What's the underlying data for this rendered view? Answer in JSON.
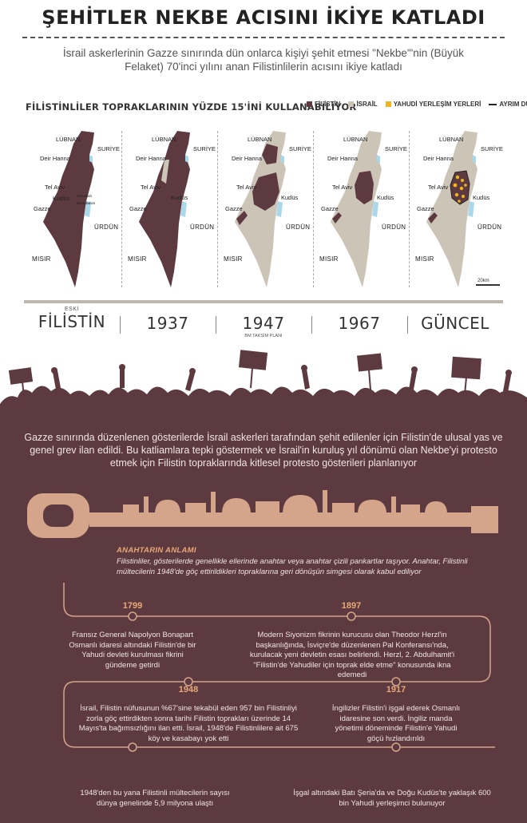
{
  "title": "ŞEHİTLER NEKBE ACISINI İKİYE KATLADI",
  "subtitle": "İsrail askerlerinin Gazze sınırında dün onlarca kişiyi şehit etmesi \"Nekbe\"'nin (Büyük Felaket) 70'inci yılını anan Filistinlilerin acısını ikiye katladı",
  "maps_section": {
    "heading": "FİLİSTİNLİLER TOPRAKLARININ YÜZDE 15'İNİ KULLANABİLİYOR",
    "legend": [
      {
        "label": "FİLİSTİN",
        "color": "#5d3a40"
      },
      {
        "label": "İSRAİL",
        "color": "#cdc4b8"
      },
      {
        "label": "YAHUDİ YERLEŞİM YERLERİ",
        "color": "#f0b41e"
      },
      {
        "label": "AYRIM DUVARI",
        "color": "#222222"
      }
    ],
    "place_labels": {
      "lebanon": "LÜBNAN",
      "syria": "SURİYE",
      "deir_hanna": "Deir Hanna",
      "tel_aviv": "Tel Aviv",
      "kudus": "Kudüs",
      "gaza": "Gazze",
      "jordan": "ÜRDÜN",
      "egypt": "MISIR",
      "ramallah": "Ramallah",
      "beytullahim": "Beytullahim"
    },
    "scale_label": "20km",
    "eras": [
      {
        "small": "ESKİ",
        "big": "FİLİSTİN",
        "sub": ""
      },
      {
        "small": "",
        "big": "1937",
        "sub": ""
      },
      {
        "small": "",
        "big": "1947",
        "sub": "BM TAKSİM PLANI"
      },
      {
        "small": "",
        "big": "1967",
        "sub": ""
      },
      {
        "small": "",
        "big": "GÜNCEL",
        "sub": ""
      }
    ]
  },
  "intro": "Gazze sınırında düzenlenen gösterilerde İsrail askerleri tarafından şehit edilenler için Filistin'de ulusal yas ve genel grev ilan edildi. Bu katliamlara tepki göstermek ve İsrail'in kuruluş yıl dönümü olan Nekbe'yi protesto etmek için Filistin topraklarında kitlesel protesto gösterileri planlanıyor",
  "key_meaning": {
    "heading": "ANAHTARIN ANLAMI",
    "text": "Filistinliler, gösterilerde genellikle ellerinde anahtar veya anahtar çizili pankartlar taşıyor. Anahtar, Filistinli mültecilerin 1948'de göç ettirildikleri topraklarına geri dönüşün simgesi olarak kabul ediliyor"
  },
  "timeline": [
    {
      "year": "1799",
      "text": "Fransız General Napolyon Bonapart Osmanlı idaresi altındaki Filistin'de bir Yahudi devleti kurulması fikrini gündeme getirdi"
    },
    {
      "year": "1897",
      "text": "Modern Siyonizm fikrinin kurucusu olan Theodor Herzl'in başkanlığında, İsviçre'de düzenlenen Pal Konferansı'nda, kurulacak yeni devletin esası belirlendi. Herzl, 2. Abdulhamit'i \"Filistin'de Yahudiler için toprak elde etme\" konusunda ikna edemedi"
    },
    {
      "year": "1948",
      "text": "İsrail, Filistin nüfusunun %67'sine tekabül eden 957 bin Filistinliyi zorla göç ettirdikten sonra tarihi Filistin toprakları üzerinde 14 Mayıs'ta bağımsızlığını ilan etti. İsrail, 1948'de Filistinlilere ait 675 köy ve kasabayı yok etti"
    },
    {
      "year": "1917",
      "text": "İngilizler Filistin'i işgal ederek Osmanlı idaresine son verdi. İngiliz manda yönetimi döneminde Filistin'e Yahudi göçü hızlandırıldı"
    },
    {
      "year": "",
      "text": "1948'den bu yana Filistinli mültecilerin sayısı dünya genelinde 5,9 milyona ulaştı"
    },
    {
      "year": "",
      "text": "İşgal altındaki Batı Şeria'da ve Doğu Kudüs'te yaklaşık 600 bin Yahudi yerleşimci bulunuyor"
    }
  ],
  "colors": {
    "palestine": "#5d3a40",
    "israel": "#cdc4b8",
    "settlement": "#f0b41e",
    "water": "#a8d8ea",
    "accent": "#e8a878",
    "background_dark": "#5d3a40"
  }
}
